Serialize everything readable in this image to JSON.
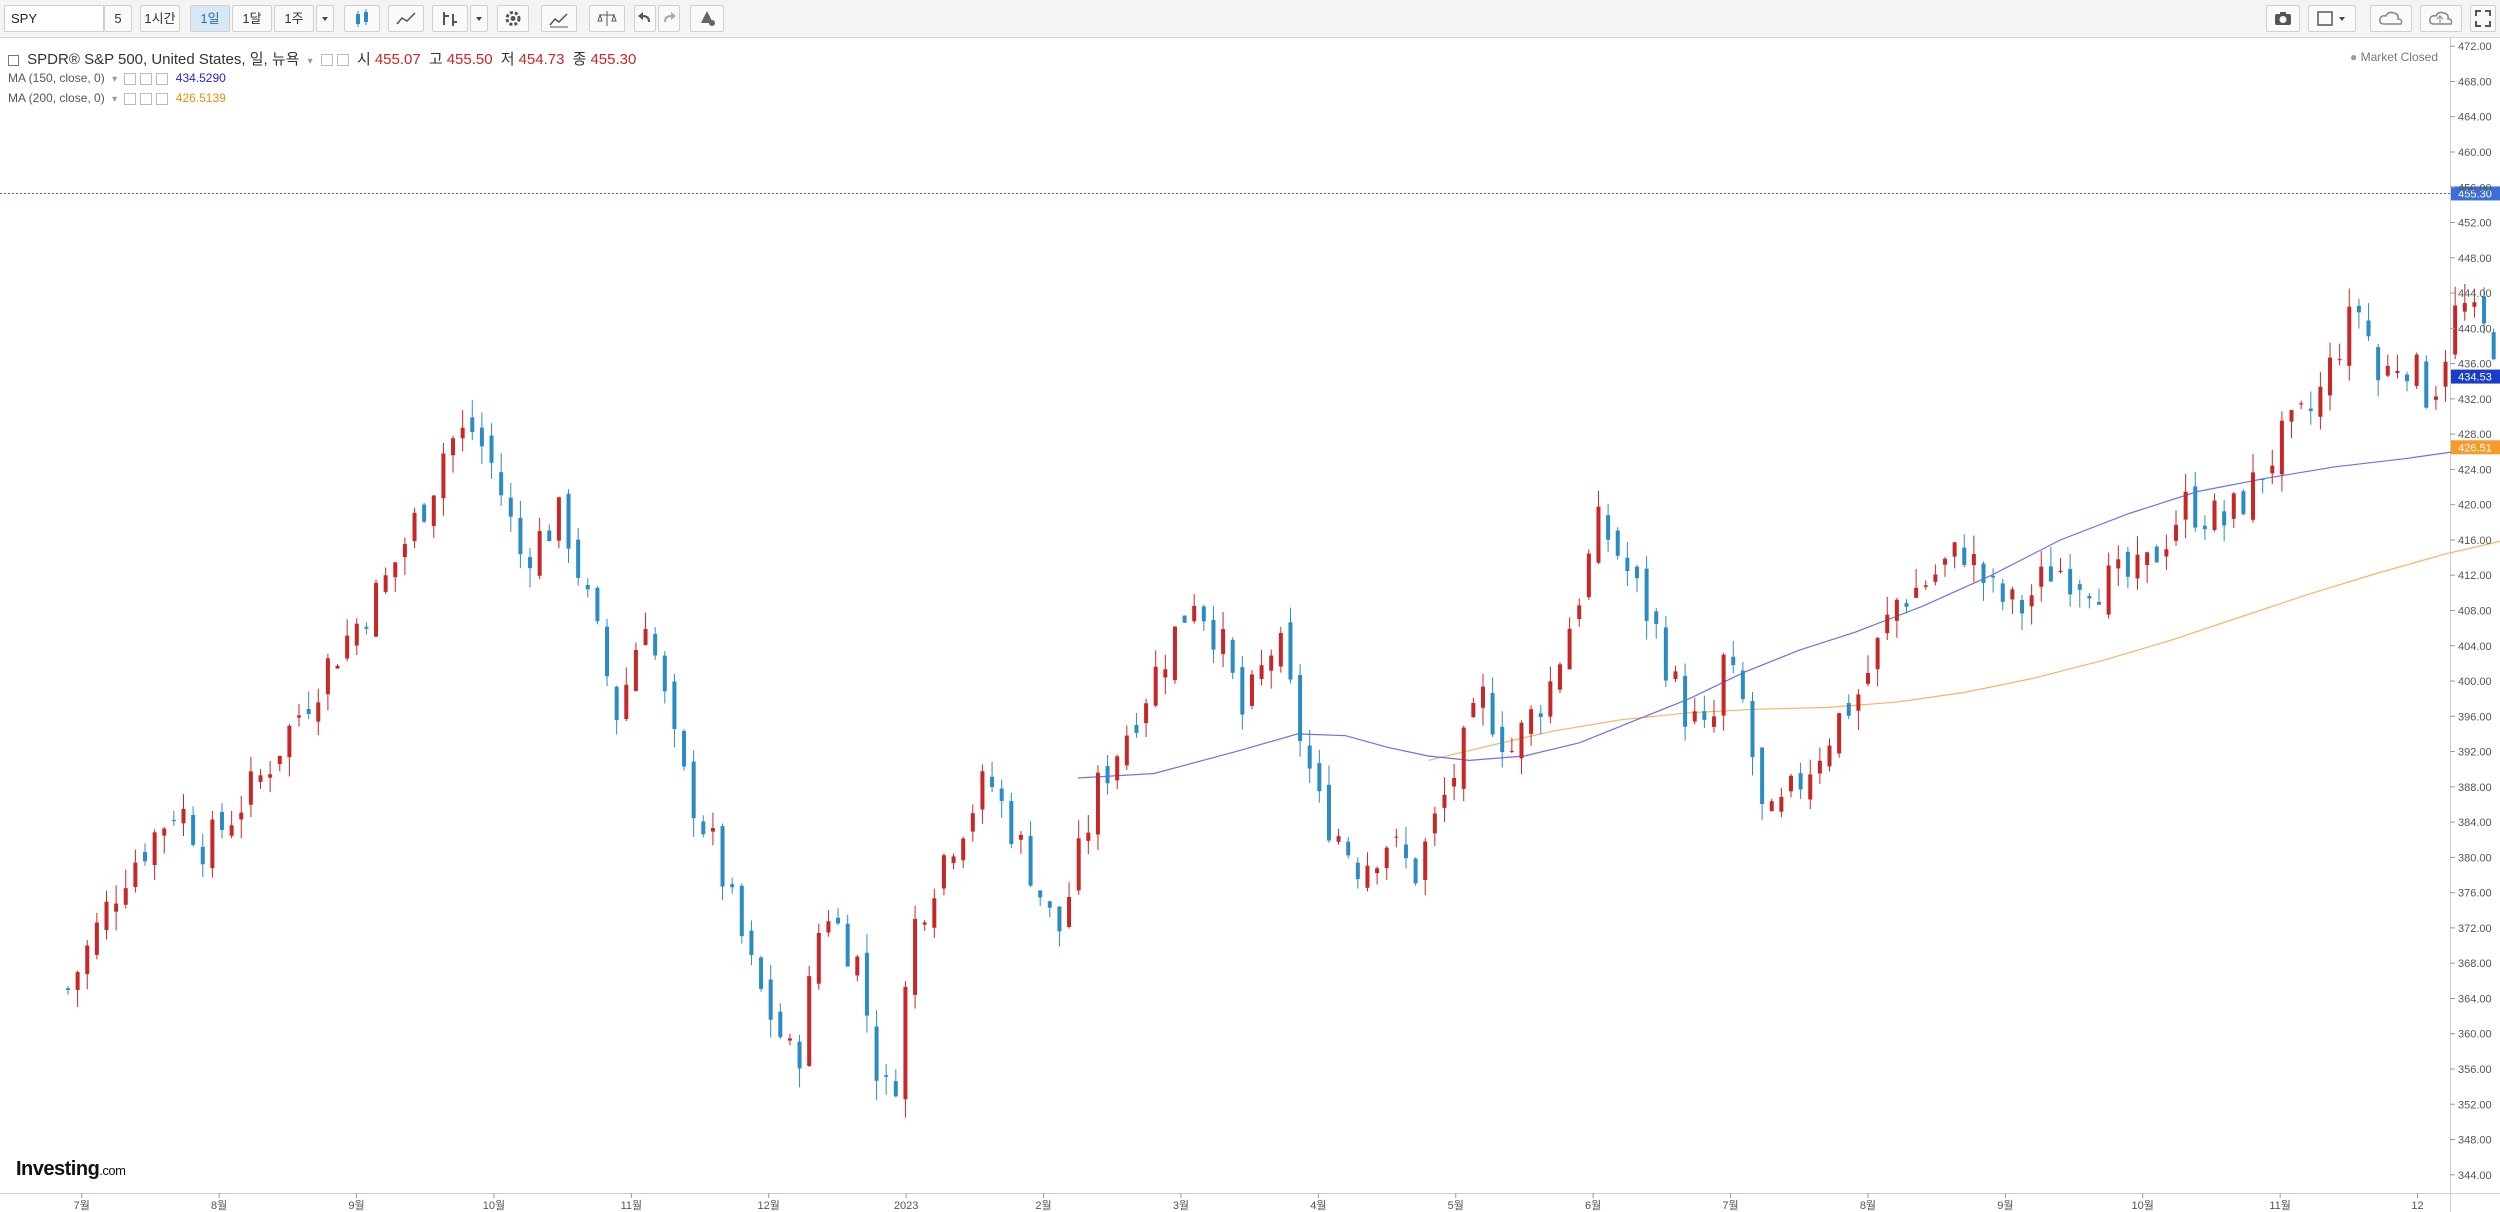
{
  "toolbar": {
    "symbol": "SPY",
    "intervals": [
      "5",
      "1시간",
      "1일",
      "1달",
      "1주"
    ],
    "active_interval": "1일",
    "icons": [
      "candles-icon",
      "line-chart-icon",
      "indicator-icon",
      "dropdown-icon",
      "gear-icon",
      "compare-icon",
      "scale-icon",
      "undo-icon",
      "redo-icon",
      "alert-icon",
      "camera-icon",
      "layout-icon",
      "cloud-icon",
      "cloud-upload-icon",
      "fullscreen-icon"
    ]
  },
  "legend": {
    "title": "SPDR® S&P 500, United States, 일, 뉴욕",
    "open_label": "시",
    "open": "455.07",
    "high_label": "고",
    "high": "455.50",
    "low_label": "저",
    "low": "454.73",
    "close_label": "종",
    "close": "455.30",
    "ma150_label": "MA (150, close, 0)",
    "ma150_value": "434.5290",
    "ma200_label": "MA (200, close, 0)",
    "ma200_value": "426.5139"
  },
  "status": {
    "market": "Market Closed"
  },
  "branding": {
    "logo": "Investing",
    "logo_suffix": ".com"
  },
  "colors": {
    "up": "#c62828",
    "down": "#2b8cc4",
    "ma150": "#6f6ff0",
    "ma200": "#f5b564",
    "price_tag": "#3a6fd8",
    "ma150_tag": "#1a3cc8",
    "ma200_tag": "#f59b2a"
  },
  "chart_data": {
    "type": "candlestick",
    "x_ticks": [
      "7월",
      "8월",
      "9월",
      "10월",
      "11월",
      "12월",
      "2023",
      "2월",
      "3월",
      "4월",
      "5월",
      "6월",
      "7월",
      "8월",
      "9월",
      "10월",
      "11월",
      "12"
    ],
    "y_ticks": [
      "472.00",
      "468.00",
      "464.00",
      "460.00",
      "456.00",
      "452.00",
      "448.00",
      "444.00",
      "440.00",
      "436.00",
      "432.00",
      "428.00",
      "424.00",
      "420.00",
      "416.00",
      "412.00",
      "408.00",
      "404.00",
      "400.00",
      "396.00",
      "392.00",
      "388.00",
      "384.00",
      "380.00",
      "376.00",
      "372.00",
      "368.00",
      "364.00",
      "360.00",
      "356.00",
      "352.00",
      "348.00",
      "344.00"
    ],
    "ylim": [
      342,
      473
    ],
    "last_price": "455.30",
    "ma150_last": "434.53",
    "ma200_last": "426.51",
    "close_path": [
      {
        "m": 0,
        "v": 365
      },
      {
        "m": 0.4,
        "v": 378
      },
      {
        "m": 0.8,
        "v": 386
      },
      {
        "m": 1.0,
        "v": 381
      },
      {
        "m": 1.4,
        "v": 389
      },
      {
        "m": 1.9,
        "v": 402
      },
      {
        "m": 2.3,
        "v": 411
      },
      {
        "m": 2.65,
        "v": 422
      },
      {
        "m": 2.75,
        "v": 427
      },
      {
        "m": 2.95,
        "v": 428.5
      },
      {
        "m": 3.1,
        "v": 424
      },
      {
        "m": 3.3,
        "v": 414
      },
      {
        "m": 3.6,
        "v": 419
      },
      {
        "m": 3.85,
        "v": 405
      },
      {
        "m": 4.0,
        "v": 396
      },
      {
        "m": 4.2,
        "v": 408
      },
      {
        "m": 4.45,
        "v": 390
      },
      {
        "m": 4.7,
        "v": 381
      },
      {
        "m": 5.0,
        "v": 366
      },
      {
        "m": 5.3,
        "v": 356
      },
      {
        "m": 5.5,
        "v": 375
      },
      {
        "m": 5.75,
        "v": 368
      },
      {
        "m": 5.9,
        "v": 355
      },
      {
        "m": 6.0,
        "v": 352
      },
      {
        "m": 6.15,
        "v": 372
      },
      {
        "m": 6.4,
        "v": 381
      },
      {
        "m": 6.7,
        "v": 389
      },
      {
        "m": 7.0,
        "v": 379
      },
      {
        "m": 7.2,
        "v": 371
      },
      {
        "m": 7.5,
        "v": 388
      },
      {
        "m": 7.95,
        "v": 402
      },
      {
        "m": 8.2,
        "v": 410
      },
      {
        "m": 8.4,
        "v": 404
      },
      {
        "m": 8.55,
        "v": 396
      },
      {
        "m": 8.8,
        "v": 405
      },
      {
        "m": 8.95,
        "v": 395
      },
      {
        "m": 9.1,
        "v": 386
      },
      {
        "m": 9.4,
        "v": 379
      },
      {
        "m": 9.6,
        "v": 382
      },
      {
        "m": 9.8,
        "v": 378
      },
      {
        "m": 10.0,
        "v": 386
      },
      {
        "m": 10.3,
        "v": 398
      },
      {
        "m": 10.5,
        "v": 392
      },
      {
        "m": 10.8,
        "v": 400
      },
      {
        "m": 11.0,
        "v": 410
      },
      {
        "m": 11.15,
        "v": 418
      },
      {
        "m": 11.3,
        "v": 414
      },
      {
        "m": 11.55,
        "v": 406
      },
      {
        "m": 11.75,
        "v": 397
      },
      {
        "m": 11.95,
        "v": 393
      },
      {
        "m": 12.05,
        "v": 402
      },
      {
        "m": 12.2,
        "v": 397
      },
      {
        "m": 12.35,
        "v": 383
      },
      {
        "m": 12.5,
        "v": 386
      },
      {
        "m": 12.7,
        "v": 391
      },
      {
        "m": 12.9,
        "v": 396
      },
      {
        "m": 13.05,
        "v": 399
      },
      {
        "m": 13.3,
        "v": 409
      },
      {
        "m": 13.5,
        "v": 411
      },
      {
        "m": 13.8,
        "v": 415
      },
      {
        "m": 14.0,
        "v": 410
      },
      {
        "m": 14.2,
        "v": 408
      },
      {
        "m": 14.45,
        "v": 413
      },
      {
        "m": 14.8,
        "v": 411
      },
      {
        "m": 15.1,
        "v": 412
      },
      {
        "m": 15.4,
        "v": 420
      },
      {
        "m": 15.7,
        "v": 418
      },
      {
        "m": 15.9,
        "v": 422
      },
      {
        "m": 16.1,
        "v": 427
      },
      {
        "m": 16.35,
        "v": 431
      },
      {
        "m": 16.55,
        "v": 439
      },
      {
        "m": 16.7,
        "v": 443
      },
      {
        "m": 16.8,
        "v": 434
      },
      {
        "m": 17.0,
        "v": 437
      },
      {
        "m": 17.2,
        "v": 432
      },
      {
        "m": 17.4,
        "v": 443
      },
      {
        "m": 17.55,
        "v": 440
      },
      {
        "m": 17.7,
        "v": 438
      },
      {
        "m": 17.85,
        "v": 443
      },
      {
        "m": 18.05,
        "v": 448
      },
      {
        "m": 18.3,
        "v": 452
      },
      {
        "m": 18.5,
        "v": 455
      },
      {
        "m": 18.7,
        "v": 457
      },
      {
        "m": 18.85,
        "v": 456
      },
      {
        "m": 19.0,
        "v": 452
      },
      {
        "m": 19.2,
        "v": 447
      },
      {
        "m": 19.4,
        "v": 445
      },
      {
        "m": 19.6,
        "v": 441
      },
      {
        "m": 19.8,
        "v": 437
      },
      {
        "m": 20.0,
        "v": 441
      },
      {
        "m": 20.15,
        "v": 444
      },
      {
        "m": 20.35,
        "v": 451
      },
      {
        "m": 20.55,
        "v": 452
      },
      {
        "m": 20.7,
        "v": 447
      },
      {
        "m": 20.9,
        "v": 448
      },
      {
        "m": 21.05,
        "v": 450
      },
      {
        "m": 21.3,
        "v": 445
      },
      {
        "m": 21.45,
        "v": 438
      },
      {
        "m": 21.6,
        "v": 432
      },
      {
        "m": 21.85,
        "v": 426
      },
      {
        "m": 22.0,
        "v": 423
      },
      {
        "m": 22.2,
        "v": 425
      },
      {
        "m": 22.4,
        "v": 428
      },
      {
        "m": 22.55,
        "v": 434
      },
      {
        "m": 22.7,
        "v": 436
      },
      {
        "m": 22.85,
        "v": 433
      },
      {
        "m": 23.0,
        "v": 430
      },
      {
        "m": 23.15,
        "v": 422
      },
      {
        "m": 23.3,
        "v": 416
      },
      {
        "m": 23.45,
        "v": 412
      },
      {
        "m": 23.6,
        "v": 416
      },
      {
        "m": 23.75,
        "v": 423
      },
      {
        "m": 23.85,
        "v": 432
      },
      {
        "m": 24.05,
        "v": 436
      },
      {
        "m": 24.25,
        "v": 438
      },
      {
        "m": 24.4,
        "v": 440
      },
      {
        "m": 24.5,
        "v": 447
      },
      {
        "m": 24.7,
        "v": 450
      },
      {
        "m": 24.85,
        "v": 451
      },
      {
        "m": 25.0,
        "v": 453
      },
      {
        "m": 25.15,
        "v": 455.3
      }
    ],
    "ma150": [
      {
        "m": 7.35,
        "v": 389
      },
      {
        "m": 7.9,
        "v": 389.5
      },
      {
        "m": 8.5,
        "v": 392
      },
      {
        "m": 8.95,
        "v": 394
      },
      {
        "m": 9.3,
        "v": 393.8
      },
      {
        "m": 9.6,
        "v": 392.5
      },
      {
        "m": 9.9,
        "v": 391.5
      },
      {
        "m": 10.2,
        "v": 391
      },
      {
        "m": 10.6,
        "v": 391.5
      },
      {
        "m": 11.0,
        "v": 393
      },
      {
        "m": 11.4,
        "v": 395.5
      },
      {
        "m": 11.8,
        "v": 398
      },
      {
        "m": 12.2,
        "v": 401
      },
      {
        "m": 12.6,
        "v": 403.5
      },
      {
        "m": 13.0,
        "v": 405.5
      },
      {
        "m": 13.5,
        "v": 408.5
      },
      {
        "m": 14.0,
        "v": 412
      },
      {
        "m": 14.5,
        "v": 416
      },
      {
        "m": 15.0,
        "v": 419
      },
      {
        "m": 15.5,
        "v": 421.5
      },
      {
        "m": 16.0,
        "v": 423
      },
      {
        "m": 16.5,
        "v": 424.3
      },
      {
        "m": 17.0,
        "v": 425.2
      },
      {
        "m": 17.5,
        "v": 426.3
      },
      {
        "m": 18.0,
        "v": 427.3
      },
      {
        "m": 18.5,
        "v": 428.2
      },
      {
        "m": 19.0,
        "v": 429
      },
      {
        "m": 19.5,
        "v": 429.6
      },
      {
        "m": 20.0,
        "v": 430.2
      },
      {
        "m": 20.5,
        "v": 431
      },
      {
        "m": 21.0,
        "v": 431.7
      },
      {
        "m": 21.5,
        "v": 432.4
      },
      {
        "m": 22.0,
        "v": 432.6
      },
      {
        "m": 22.5,
        "v": 433
      },
      {
        "m": 23.0,
        "v": 433.4
      },
      {
        "m": 23.5,
        "v": 433.6
      },
      {
        "m": 24.0,
        "v": 433.9
      },
      {
        "m": 24.5,
        "v": 434.2
      },
      {
        "m": 25.15,
        "v": 434.53
      }
    ],
    "ma200": [
      {
        "m": 9.9,
        "v": 391
      },
      {
        "m": 10.3,
        "v": 392.5
      },
      {
        "m": 10.8,
        "v": 394.3
      },
      {
        "m": 11.3,
        "v": 395.6
      },
      {
        "m": 11.8,
        "v": 396.4
      },
      {
        "m": 12.3,
        "v": 396.8
      },
      {
        "m": 12.8,
        "v": 397
      },
      {
        "m": 13.3,
        "v": 397.6
      },
      {
        "m": 13.8,
        "v": 398.7
      },
      {
        "m": 14.3,
        "v": 400.3
      },
      {
        "m": 14.8,
        "v": 402.3
      },
      {
        "m": 15.3,
        "v": 404.6
      },
      {
        "m": 15.8,
        "v": 407.2
      },
      {
        "m": 16.3,
        "v": 409.8
      },
      {
        "m": 16.8,
        "v": 412.2
      },
      {
        "m": 17.3,
        "v": 414.4
      },
      {
        "m": 17.8,
        "v": 416.2
      },
      {
        "m": 18.3,
        "v": 417.8
      },
      {
        "m": 18.8,
        "v": 419.2
      },
      {
        "m": 19.3,
        "v": 420.3
      },
      {
        "m": 19.8,
        "v": 421.3
      },
      {
        "m": 20.3,
        "v": 422.1
      },
      {
        "m": 20.8,
        "v": 422.8
      },
      {
        "m": 21.3,
        "v": 423.4
      },
      {
        "m": 21.8,
        "v": 423.9
      },
      {
        "m": 22.3,
        "v": 424.4
      },
      {
        "m": 22.8,
        "v": 424.9
      },
      {
        "m": 23.3,
        "v": 425.4
      },
      {
        "m": 23.8,
        "v": 425.7
      },
      {
        "m": 24.3,
        "v": 426
      },
      {
        "m": 25.15,
        "v": 426.51
      }
    ]
  }
}
